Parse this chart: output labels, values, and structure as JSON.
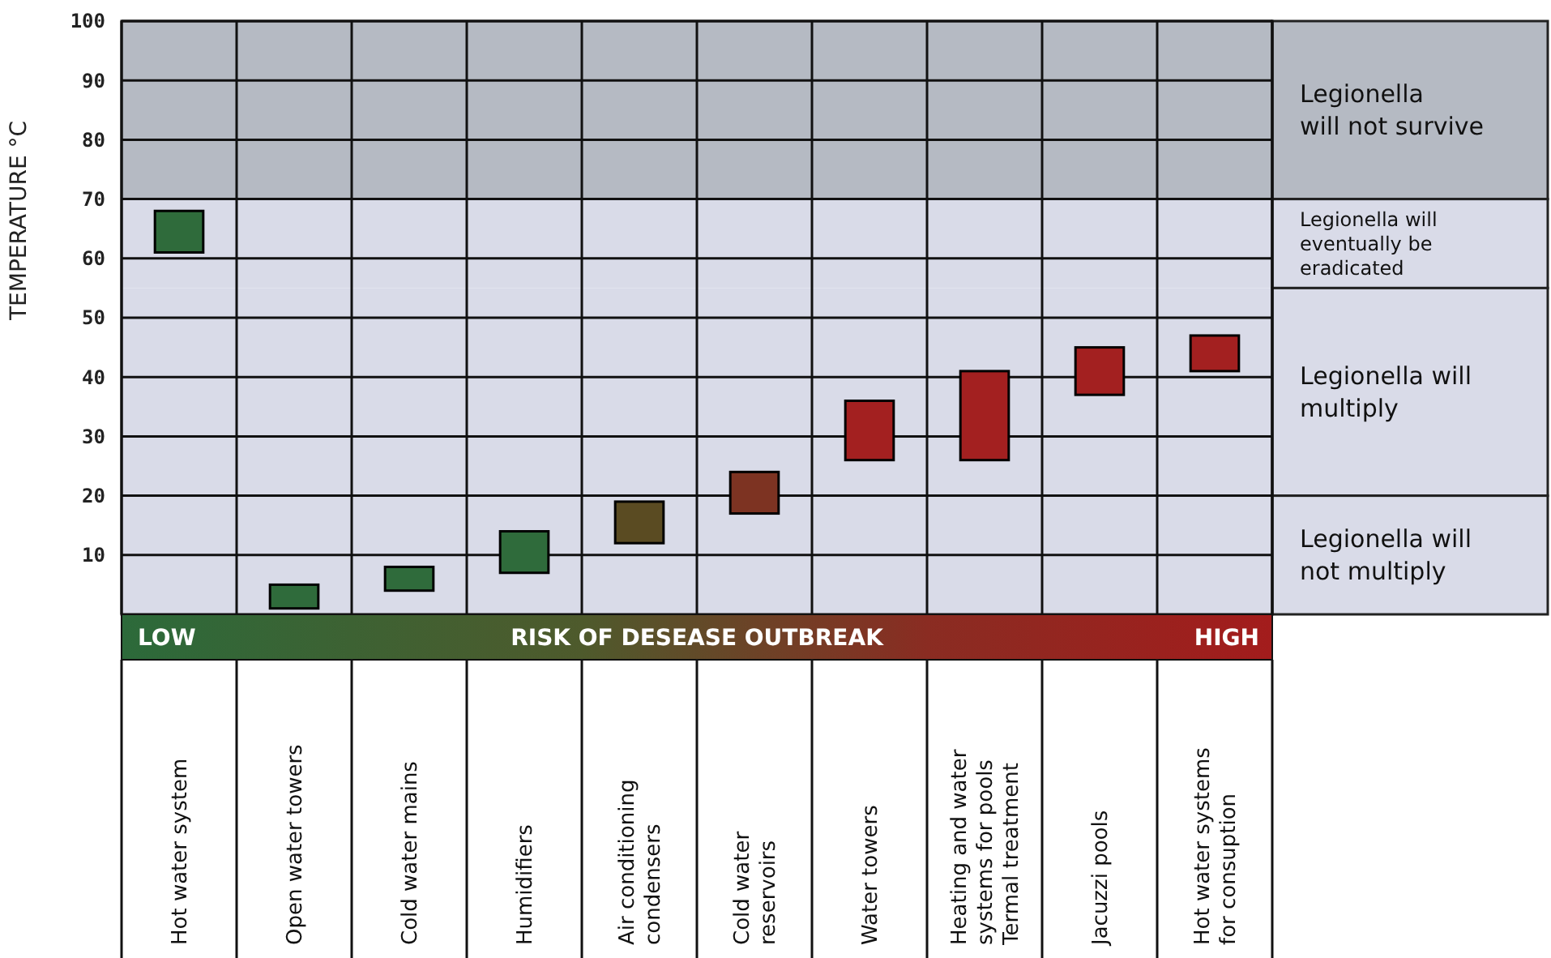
{
  "chart_data": {
    "type": "bar",
    "ylabel": "TEMPERATURE °C",
    "categories": [
      "Hot water system",
      "Open water towers",
      "Cold water mains",
      "Humidifiers",
      "Air conditioning\ncondensers",
      "Cold water\nreservoirs",
      "Water towers",
      "Heating and water\nsystems for pools\nTermal treatment",
      "Jacuzzi pools",
      "Hot water systems\nfor consuption"
    ],
    "base": [
      61,
      1,
      4,
      7,
      12,
      17,
      26,
      26,
      37,
      41
    ],
    "values": [
      7,
      4,
      4,
      7,
      7,
      7,
      10,
      15,
      8,
      6
    ],
    "colors": [
      "#2f6b3b",
      "#2f6b3b",
      "#2f6b3b",
      "#2f6b3b",
      "#5a4b22",
      "#7d3322",
      "#a32020",
      "#a32020",
      "#a32020",
      "#a32020"
    ],
    "ylim": [
      0,
      100
    ],
    "yticks": [
      10,
      20,
      30,
      40,
      50,
      60,
      70,
      80,
      90,
      100
    ],
    "grid": true,
    "bands": [
      {
        "axis": "y",
        "from": 70,
        "to": 100,
        "label": "Legionella\nwill not survive",
        "color": "#b5bac3"
      },
      {
        "axis": "y",
        "from": 55,
        "to": 70,
        "label": "Legionella will\neventually be\neradicated",
        "color": "#d9dbe8"
      },
      {
        "axis": "y",
        "from": 20,
        "to": 55,
        "label": "Legionella will\nmultiply",
        "color": "#d9dbe8"
      },
      {
        "axis": "y",
        "from": 0,
        "to": 20,
        "label": "Legionella will\nnot multiply",
        "color": "#d9dbe8"
      }
    ],
    "annotations": [
      "LOW",
      "RISK OF DESEASE OUTBREAK",
      "HIGH"
    ]
  }
}
